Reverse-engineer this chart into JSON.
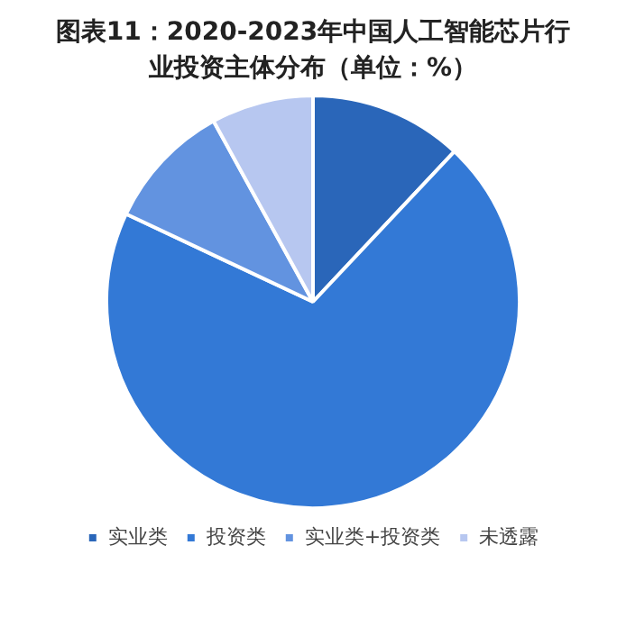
{
  "chart_data": {
    "type": "pie",
    "title": "图表11：2020-2023年中国人工智能芯片行业投资主体分布（单位：%）",
    "categories": [
      "实业类",
      "投资类",
      "实业类+投资类",
      "未透露"
    ],
    "values": [
      12,
      70,
      10,
      8
    ],
    "colors": [
      "#2a66b9",
      "#3379d6",
      "#6293e0",
      "#b7c7f0"
    ],
    "legend": "bottom"
  }
}
